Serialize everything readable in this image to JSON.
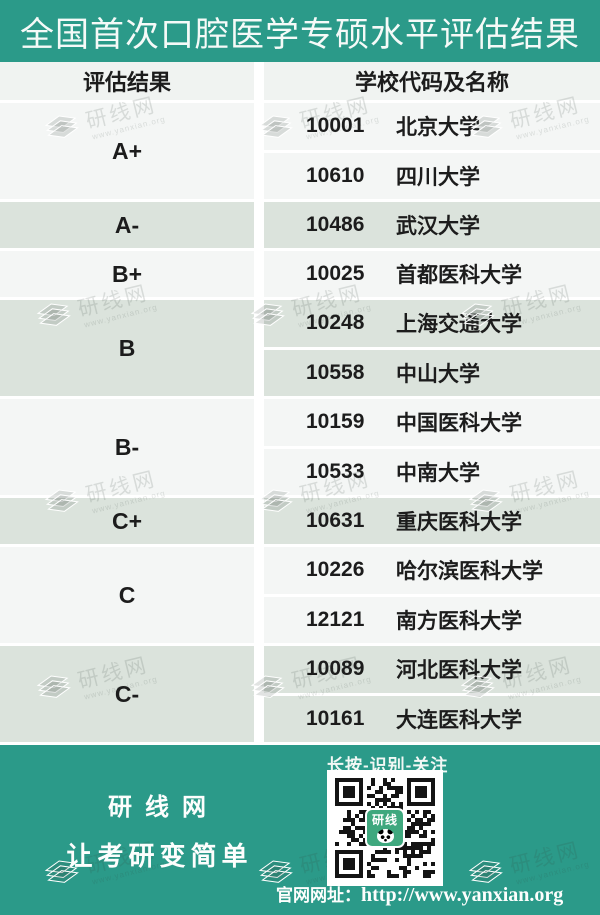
{
  "banner": {
    "title": "全国首次口腔医学专硕水平评估结果"
  },
  "theme": {
    "teal": "#2B9A89",
    "stripe_green": "#DBE3DC",
    "row_light": "#F4F6F5",
    "text_ink": "#1C1C1C",
    "qr_logo_green": "#3FA87E"
  },
  "table": {
    "headers": [
      "评估结果",
      "学校代码及名称"
    ],
    "groups": [
      {
        "grade": "A+",
        "shaded": false,
        "schools": [
          {
            "code": "10001",
            "name": "北京大学"
          },
          {
            "code": "10610",
            "name": "四川大学"
          }
        ]
      },
      {
        "grade": "A-",
        "shaded": true,
        "schools": [
          {
            "code": "10486",
            "name": "武汉大学"
          }
        ]
      },
      {
        "grade": "B+",
        "shaded": false,
        "schools": [
          {
            "code": "10025",
            "name": "首都医科大学"
          }
        ]
      },
      {
        "grade": "B",
        "shaded": true,
        "schools": [
          {
            "code": "10248",
            "name": "上海交通大学"
          },
          {
            "code": "10558",
            "name": "中山大学"
          }
        ]
      },
      {
        "grade": "B-",
        "shaded": false,
        "schools": [
          {
            "code": "10159",
            "name": "中国医科大学"
          },
          {
            "code": "10533",
            "name": "中南大学"
          }
        ]
      },
      {
        "grade": "C+",
        "shaded": true,
        "schools": [
          {
            "code": "10631",
            "name": "重庆医科大学"
          }
        ]
      },
      {
        "grade": "C",
        "shaded": false,
        "schools": [
          {
            "code": "10226",
            "name": "哈尔滨医科大学"
          },
          {
            "code": "12121",
            "name": "南方医科大学"
          }
        ]
      },
      {
        "grade": "C-",
        "shaded": true,
        "schools": [
          {
            "code": "10089",
            "name": "河北医科大学"
          },
          {
            "code": "10161",
            "name": "大连医科大学"
          }
        ]
      }
    ]
  },
  "watermark": {
    "label": "研线网",
    "url": "www.yanxian.org",
    "icon": "books-icon"
  },
  "footer": {
    "scan_text": "长按-识别-关注",
    "qr_logo_text": "研线",
    "brand_line1": "研线网",
    "brand_line2": "让考研变简单",
    "site_label": "官网网址：",
    "site_url": "http://www.yanxian.org"
  }
}
